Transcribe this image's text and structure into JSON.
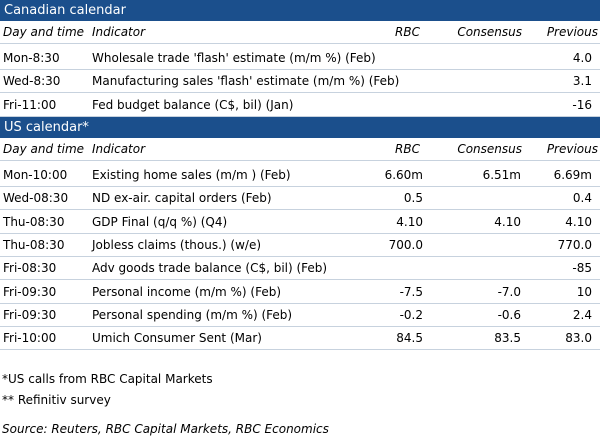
{
  "canadian": {
    "title": "Canadian calendar",
    "headers": {
      "day": "Day and time",
      "indicator": "Indicator",
      "rbc": "RBC",
      "consensus": "Consensus",
      "previous": "Previous"
    },
    "rows": [
      {
        "day": "Mon-8:30",
        "indicator": "Wholesale trade 'flash' estimate (m/m %) (Feb)",
        "rbc": "",
        "consensus": "",
        "previous": "4.0"
      },
      {
        "day": "Wed-8:30",
        "indicator": "Manufacturing sales 'flash' estimate (m/m %) (Feb)",
        "rbc": "",
        "consensus": "",
        "previous": "3.1"
      },
      {
        "day": "Fri-11:00",
        "indicator": "Fed budget balance (C$, bil) (Jan)",
        "rbc": "",
        "consensus": "",
        "previous": "-16"
      }
    ]
  },
  "us": {
    "title": "US calendar*",
    "headers": {
      "day": "Day and time",
      "indicator": "Indicator",
      "rbc": "RBC",
      "consensus": "Consensus",
      "previous": "Previous"
    },
    "rows": [
      {
        "day": "Mon-10:00",
        "indicator": "Existing home sales (m/m ) (Feb)",
        "rbc": "6.60m",
        "consensus": "6.51m",
        "previous": "6.69m"
      },
      {
        "day": "Wed-08:30",
        "indicator": "ND ex-air. capital orders (Feb)",
        "rbc": "0.5",
        "consensus": "",
        "previous": "0.4"
      },
      {
        "day": "Thu-08:30",
        "indicator": "GDP Final (q/q %) (Q4)",
        "rbc": "4.10",
        "consensus": "4.10",
        "previous": "4.10"
      },
      {
        "day": "Thu-08:30",
        "indicator": "Jobless claims (thous.) (w/e)",
        "rbc": "700.0",
        "consensus": "",
        "previous": "770.0"
      },
      {
        "day": "Fri-08:30",
        "indicator": "Adv goods trade balance (C$, bil) (Feb)",
        "rbc": "",
        "consensus": "",
        "previous": "-85"
      },
      {
        "day": "Fri-09:30",
        "indicator": "Personal income (m/m %) (Feb)",
        "rbc": "-7.5",
        "consensus": "-7.0",
        "previous": "10"
      },
      {
        "day": "Fri-09:30",
        "indicator": "Personal spending (m/m %) (Feb)",
        "rbc": "-0.2",
        "consensus": "-0.6",
        "previous": "2.4"
      },
      {
        "day": "Fri-10:00",
        "indicator": "Umich Consumer Sent (Mar)",
        "rbc": "84.5",
        "consensus": "83.5",
        "previous": "83.0"
      }
    ]
  },
  "notes": {
    "us_calls": "*US calls from RBC Capital Markets",
    "refinitiv": "** Refinitiv survey",
    "source": "Source: Reuters, RBC Capital Markets, RBC Economics"
  }
}
